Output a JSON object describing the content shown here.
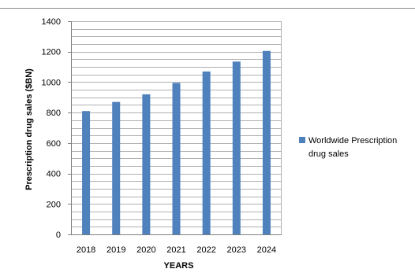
{
  "chart_data": {
    "type": "bar",
    "title": "",
    "xlabel": "YEARS",
    "ylabel": "Prescription drug sales ($BN)",
    "categories": [
      "2018",
      "2019",
      "2020",
      "2021",
      "2022",
      "2023",
      "2024"
    ],
    "series": [
      {
        "name": "Worldwide Prescription drug sales",
        "values": [
          810,
          870,
          920,
          995,
          1070,
          1135,
          1205
        ]
      }
    ],
    "ylim": [
      0,
      1400
    ],
    "yticks": [
      0,
      200,
      400,
      600,
      800,
      1000,
      1200,
      1400
    ],
    "minor_grid_step": 50,
    "grid": true,
    "legend_position": "right",
    "legend_lines": [
      "Worldwide Prescription",
      "drug sales"
    ],
    "colors": {
      "bar": "#4f81bd",
      "grid": "#b0b0b0",
      "axis": "#7f7f7f"
    }
  }
}
